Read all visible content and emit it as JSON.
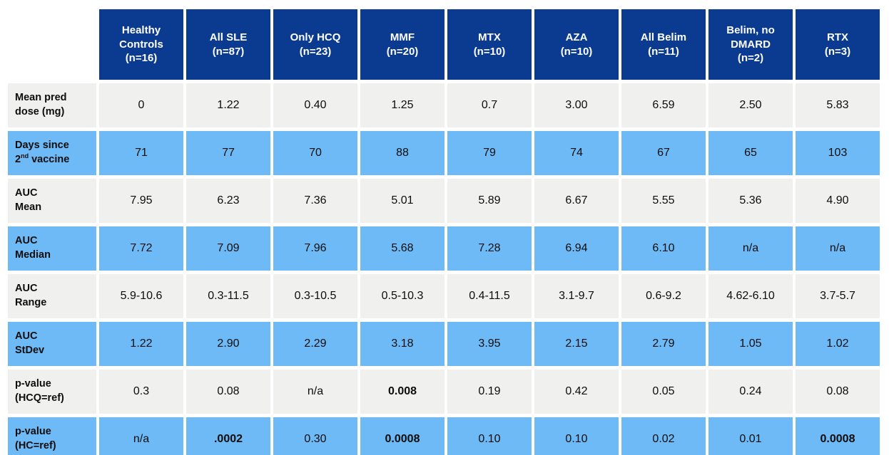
{
  "colors": {
    "header_bg": "#0b3b91",
    "header_text": "#ffffff",
    "row_gray": "#f0f0ef",
    "row_blue": "#6ebaf7",
    "bottom_edge": "#b9dcf9",
    "body_text": "#0d0d0d"
  },
  "table": {
    "corner": "",
    "headers": [
      {
        "name": "Healthy Controls",
        "n": "(n=16)"
      },
      {
        "name": "All SLE",
        "n": "(n=87)"
      },
      {
        "name": "Only HCQ",
        "n": "(n=23)"
      },
      {
        "name": "MMF",
        "n": "(n=20)"
      },
      {
        "name": "MTX",
        "n": "(n=10)"
      },
      {
        "name": "AZA",
        "n": "(n=10)"
      },
      {
        "name": "All Belim",
        "n": "(n=11)"
      },
      {
        "name": "Belim, no DMARD",
        "n": "(n=2)"
      },
      {
        "name": "RTX",
        "n": "(n=3)"
      }
    ],
    "rows": [
      {
        "label": {
          "l1": "Mean pred",
          "l2": "dose (mg)",
          "sup": "",
          "post": ""
        },
        "cells": [
          {
            "v": "0"
          },
          {
            "v": "1.22"
          },
          {
            "v": "0.40"
          },
          {
            "v": "1.25"
          },
          {
            "v": "0.7"
          },
          {
            "v": "3.00"
          },
          {
            "v": "6.59"
          },
          {
            "v": "2.50"
          },
          {
            "v": "5.83"
          }
        ]
      },
      {
        "label": {
          "l1": "Days since",
          "l2": "2",
          "sup": "nd",
          "post": " vaccine"
        },
        "cells": [
          {
            "v": "71"
          },
          {
            "v": "77"
          },
          {
            "v": "70"
          },
          {
            "v": "88"
          },
          {
            "v": "79"
          },
          {
            "v": "74"
          },
          {
            "v": "67"
          },
          {
            "v": "65"
          },
          {
            "v": "103"
          }
        ]
      },
      {
        "label": {
          "l1": "AUC",
          "l2": "Mean",
          "sup": "",
          "post": ""
        },
        "cells": [
          {
            "v": "7.95"
          },
          {
            "v": "6.23"
          },
          {
            "v": "7.36"
          },
          {
            "v": "5.01"
          },
          {
            "v": "5.89"
          },
          {
            "v": "6.67"
          },
          {
            "v": "5.55"
          },
          {
            "v": "5.36"
          },
          {
            "v": "4.90"
          }
        ]
      },
      {
        "label": {
          "l1": "AUC",
          "l2": "Median",
          "sup": "",
          "post": ""
        },
        "cells": [
          {
            "v": "7.72"
          },
          {
            "v": "7.09"
          },
          {
            "v": "7.96"
          },
          {
            "v": "5.68"
          },
          {
            "v": "7.28"
          },
          {
            "v": "6.94"
          },
          {
            "v": "6.10"
          },
          {
            "v": "n/a"
          },
          {
            "v": "n/a"
          }
        ]
      },
      {
        "label": {
          "l1": "AUC",
          "l2": "Range",
          "sup": "",
          "post": ""
        },
        "cells": [
          {
            "v": "5.9-10.6"
          },
          {
            "v": "0.3-11.5"
          },
          {
            "v": "0.3-10.5"
          },
          {
            "v": "0.5-10.3"
          },
          {
            "v": "0.4-11.5"
          },
          {
            "v": "3.1-9.7"
          },
          {
            "v": "0.6-9.2"
          },
          {
            "v": "4.62-6.10"
          },
          {
            "v": "3.7-5.7"
          }
        ]
      },
      {
        "label": {
          "l1": "AUC",
          "l2": "StDev",
          "sup": "",
          "post": ""
        },
        "cells": [
          {
            "v": "1.22"
          },
          {
            "v": "2.90"
          },
          {
            "v": "2.29"
          },
          {
            "v": "3.18"
          },
          {
            "v": "3.95"
          },
          {
            "v": "2.15"
          },
          {
            "v": "2.79"
          },
          {
            "v": "1.05"
          },
          {
            "v": "1.02"
          }
        ]
      },
      {
        "label": {
          "l1": "p-value",
          "l2": "(HCQ=ref)",
          "sup": "",
          "post": ""
        },
        "cells": [
          {
            "v": "0.3"
          },
          {
            "v": "0.08"
          },
          {
            "v": "n/a"
          },
          {
            "v": "0.008",
            "bold": true
          },
          {
            "v": "0.19"
          },
          {
            "v": "0.42"
          },
          {
            "v": "0.05"
          },
          {
            "v": "0.24"
          },
          {
            "v": "0.08"
          }
        ]
      },
      {
        "label": {
          "l1": "p-value",
          "l2": "(HC=ref)",
          "sup": "",
          "post": ""
        },
        "cells": [
          {
            "v": "n/a"
          },
          {
            "v": ".0002",
            "bold": true
          },
          {
            "v": "0.30"
          },
          {
            "v": "0.0008",
            "bold": true
          },
          {
            "v": "0.10"
          },
          {
            "v": "0.10"
          },
          {
            "v": "0.02"
          },
          {
            "v": "0.01"
          },
          {
            "v": "0.0008",
            "bold": true
          }
        ]
      }
    ]
  }
}
